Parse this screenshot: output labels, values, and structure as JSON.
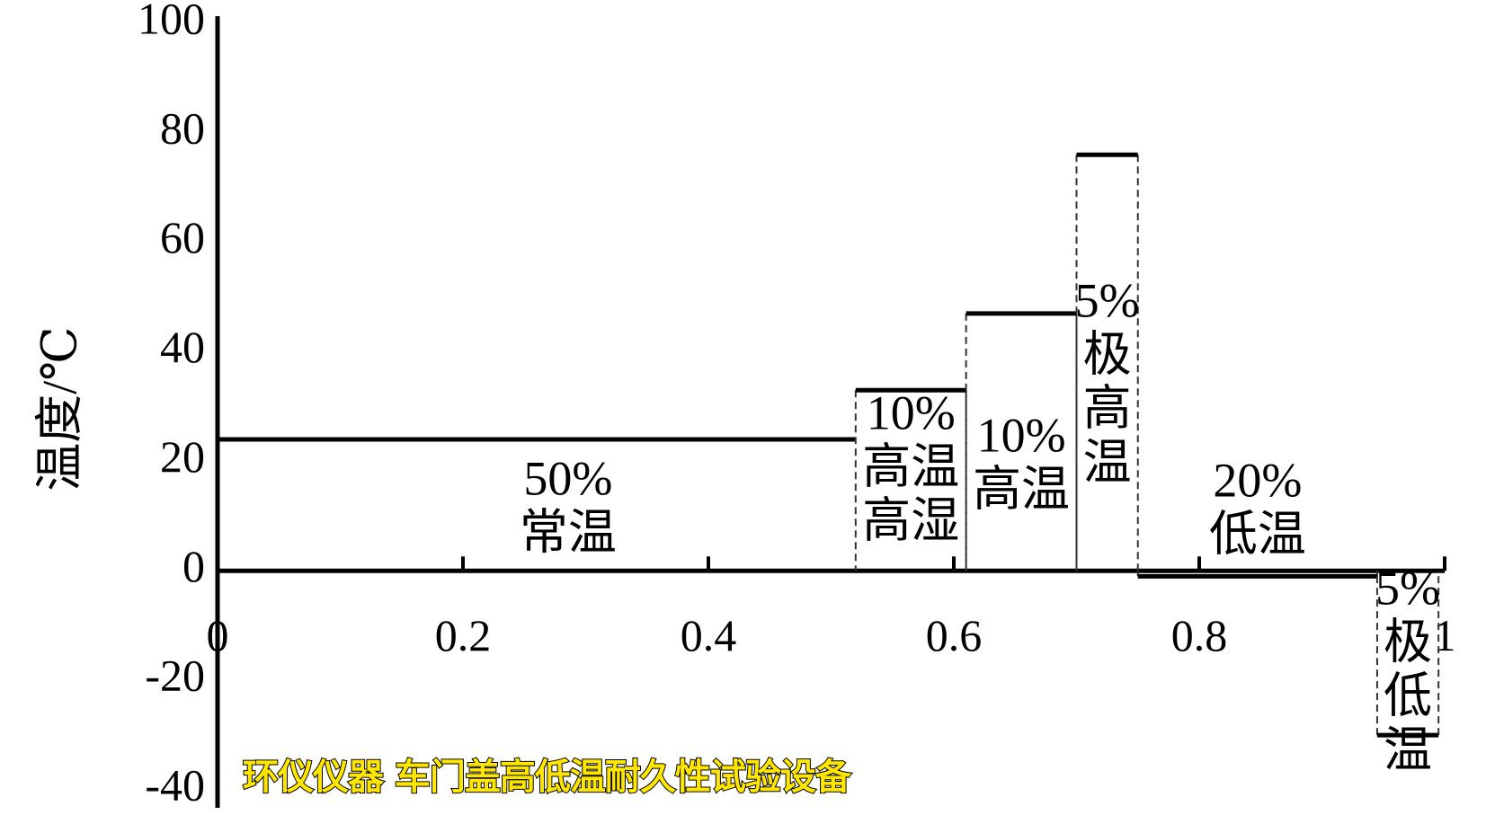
{
  "chart_data": {
    "type": "step",
    "ylabel": "温度/℃",
    "xlim": [
      0,
      1
    ],
    "ylim": [
      -40,
      100
    ],
    "xticks": [
      0,
      0.2,
      0.4,
      0.6,
      0.8,
      1
    ],
    "yticks": [
      100,
      80,
      60,
      40,
      20,
      0,
      -20,
      -40
    ],
    "color": "#000000",
    "segments": [
      {
        "x": [
          0,
          0.52
        ],
        "y": 24,
        "label": [
          "50%",
          "常温"
        ]
      },
      {
        "x": [
          0.52,
          0.61
        ],
        "y": 33,
        "label": [
          "10%",
          "高温",
          "高湿"
        ]
      },
      {
        "x": [
          0.61,
          0.7
        ],
        "y": 47,
        "label": [
          "10%",
          "高温"
        ]
      },
      {
        "x": [
          0.7,
          0.75
        ],
        "y": 76,
        "label": [
          "5%",
          "极",
          "高",
          "温"
        ]
      },
      {
        "x": [
          0.75,
          0.945
        ],
        "y": -1,
        "label": [
          "20%",
          "低温"
        ]
      },
      {
        "x": [
          0.945,
          0.995
        ],
        "y": -30,
        "label": [
          "5%",
          "极",
          "低",
          "温"
        ]
      }
    ]
  },
  "caption": "环仪仪器 车门盖高低温耐久性试验设备"
}
